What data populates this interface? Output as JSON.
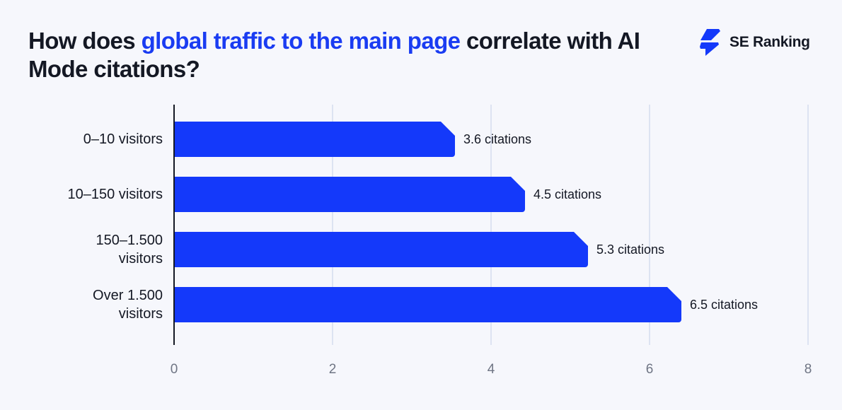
{
  "header": {
    "title_pre": "How does ",
    "title_highlight": "global traffic to the main page",
    "title_post": " correlate with AI Mode citations?",
    "brand": "SE Ranking",
    "brand_icon": "se-ranking-logo-icon"
  },
  "colors": {
    "bar": "#1439fa",
    "highlight": "#1a3cf2",
    "text": "#141824",
    "grid": "#dde3f2",
    "background": "#f6f7fc",
    "tick": "#6f7584"
  },
  "chart_data": {
    "type": "bar",
    "orientation": "horizontal",
    "title": "How does global traffic to the main page correlate with AI Mode citations?",
    "categories": [
      "0–10 visitors",
      "10–150 visitors",
      "150–1.500 visitors",
      "Over 1.500 visitors"
    ],
    "category_lines": [
      [
        "0–10 visitors"
      ],
      [
        "10–150 visitors"
      ],
      [
        "150–1.500",
        "visitors"
      ],
      [
        "Over 1.500",
        "visitors"
      ]
    ],
    "values": [
      3.6,
      4.5,
      5.3,
      6.5
    ],
    "data_labels": [
      "3.6 citations",
      "4.5 citations",
      "5.3 citations",
      "6.5 citations"
    ],
    "xticks": [
      0,
      2,
      4,
      6,
      8
    ],
    "xlim": [
      0,
      8
    ],
    "xlabel": "",
    "ylabel": "",
    "grid": "vertical",
    "legend": "none"
  }
}
